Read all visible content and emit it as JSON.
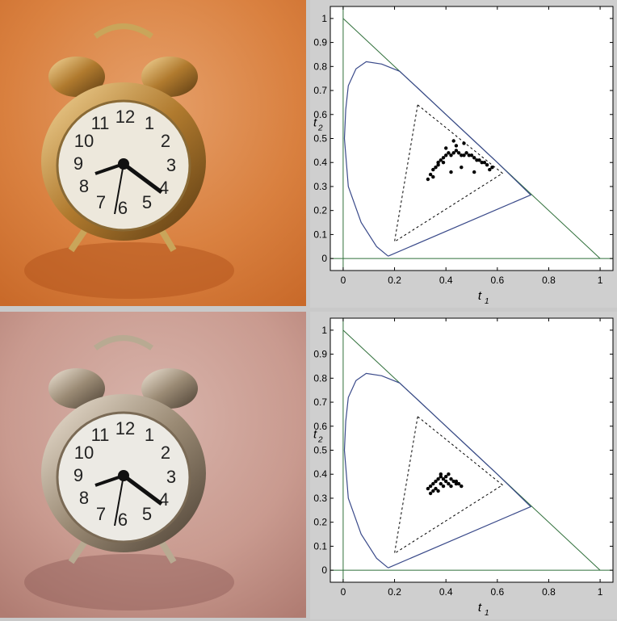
{
  "colors": {
    "figure_bg": "#cfcfcf",
    "axes_bg": "#ffffff",
    "locus": "#3a4a8a",
    "lines": "#2f6f3a",
    "points": "#000000",
    "top_photo_bg": "#d98545",
    "bottom_photo_bg": "#c99a8f"
  },
  "images": [
    {
      "name": "alarm-clock-original",
      "tint": "orange"
    },
    {
      "name": "alarm-clock-corrected",
      "tint": "pink"
    }
  ],
  "clock_numerals": [
    "12",
    "1",
    "2",
    "3",
    "4",
    "5",
    "6",
    "7",
    "8",
    "9",
    "10",
    "11"
  ],
  "chart_data": [
    {
      "type": "scatter",
      "xlabel": "t",
      "xlabel_sub": "1",
      "ylabel": "t",
      "ylabel_sub": "2",
      "xlim": [
        -0.05,
        1.05
      ],
      "ylim": [
        -0.05,
        1.05
      ],
      "xticks": [
        "0",
        "0.2",
        "0.4",
        "0.6",
        "0.8",
        "1"
      ],
      "yticks": [
        "0",
        "0.1",
        "0.2",
        "0.3",
        "0.4",
        "0.5",
        "0.6",
        "0.7",
        "0.8",
        "0.9",
        "1"
      ],
      "grid": false,
      "locus": [
        [
          0.175,
          0.01
        ],
        [
          0.13,
          0.05
        ],
        [
          0.07,
          0.15
        ],
        [
          0.02,
          0.3
        ],
        [
          0.005,
          0.5
        ],
        [
          0.01,
          0.62
        ],
        [
          0.02,
          0.72
        ],
        [
          0.05,
          0.79
        ],
        [
          0.09,
          0.82
        ],
        [
          0.15,
          0.81
        ],
        [
          0.22,
          0.78
        ],
        [
          0.3,
          0.7
        ],
        [
          0.4,
          0.6
        ],
        [
          0.5,
          0.5
        ],
        [
          0.6,
          0.4
        ],
        [
          0.73,
          0.265
        ],
        [
          0.175,
          0.01
        ]
      ],
      "triangle": [
        [
          0.29,
          0.64
        ],
        [
          0.2,
          0.07
        ],
        [
          0.62,
          0.355
        ],
        [
          0.29,
          0.64
        ]
      ],
      "points": [
        [
          0.33,
          0.33
        ],
        [
          0.34,
          0.35
        ],
        [
          0.35,
          0.37
        ],
        [
          0.36,
          0.38
        ],
        [
          0.37,
          0.4
        ],
        [
          0.38,
          0.41
        ],
        [
          0.39,
          0.42
        ],
        [
          0.4,
          0.43
        ],
        [
          0.41,
          0.44
        ],
        [
          0.42,
          0.43
        ],
        [
          0.43,
          0.44
        ],
        [
          0.44,
          0.45
        ],
        [
          0.45,
          0.44
        ],
        [
          0.46,
          0.43
        ],
        [
          0.47,
          0.43
        ],
        [
          0.48,
          0.44
        ],
        [
          0.49,
          0.43
        ],
        [
          0.5,
          0.43
        ],
        [
          0.51,
          0.42
        ],
        [
          0.52,
          0.41
        ],
        [
          0.53,
          0.41
        ],
        [
          0.54,
          0.4
        ],
        [
          0.55,
          0.4
        ],
        [
          0.56,
          0.39
        ],
        [
          0.57,
          0.37
        ],
        [
          0.58,
          0.38
        ],
        [
          0.43,
          0.49
        ],
        [
          0.44,
          0.47
        ],
        [
          0.4,
          0.46
        ],
        [
          0.39,
          0.4
        ],
        [
          0.42,
          0.36
        ],
        [
          0.51,
          0.36
        ],
        [
          0.46,
          0.38
        ],
        [
          0.37,
          0.39
        ],
        [
          0.35,
          0.34
        ],
        [
          0.47,
          0.48
        ]
      ]
    },
    {
      "type": "scatter",
      "xlabel": "t",
      "xlabel_sub": "1",
      "ylabel": "t",
      "ylabel_sub": "2",
      "xlim": [
        -0.05,
        1.05
      ],
      "ylim": [
        -0.05,
        1.05
      ],
      "xticks": [
        "0",
        "0.2",
        "0.4",
        "0.6",
        "0.8",
        "1"
      ],
      "yticks": [
        "0",
        "0.1",
        "0.2",
        "0.3",
        "0.4",
        "0.5",
        "0.6",
        "0.7",
        "0.8",
        "0.9",
        "1"
      ],
      "grid": false,
      "locus": [
        [
          0.175,
          0.01
        ],
        [
          0.13,
          0.05
        ],
        [
          0.07,
          0.15
        ],
        [
          0.02,
          0.3
        ],
        [
          0.005,
          0.5
        ],
        [
          0.01,
          0.62
        ],
        [
          0.02,
          0.72
        ],
        [
          0.05,
          0.79
        ],
        [
          0.09,
          0.82
        ],
        [
          0.15,
          0.81
        ],
        [
          0.22,
          0.78
        ],
        [
          0.3,
          0.7
        ],
        [
          0.4,
          0.6
        ],
        [
          0.5,
          0.5
        ],
        [
          0.6,
          0.4
        ],
        [
          0.73,
          0.265
        ],
        [
          0.175,
          0.01
        ]
      ],
      "triangle": [
        [
          0.29,
          0.64
        ],
        [
          0.2,
          0.07
        ],
        [
          0.62,
          0.355
        ],
        [
          0.29,
          0.64
        ]
      ],
      "points": [
        [
          0.33,
          0.34
        ],
        [
          0.34,
          0.35
        ],
        [
          0.35,
          0.36
        ],
        [
          0.36,
          0.37
        ],
        [
          0.37,
          0.38
        ],
        [
          0.38,
          0.39
        ],
        [
          0.39,
          0.38
        ],
        [
          0.4,
          0.39
        ],
        [
          0.41,
          0.4
        ],
        [
          0.4,
          0.37
        ],
        [
          0.42,
          0.38
        ],
        [
          0.43,
          0.37
        ],
        [
          0.44,
          0.37
        ],
        [
          0.45,
          0.36
        ],
        [
          0.46,
          0.35
        ],
        [
          0.34,
          0.32
        ],
        [
          0.36,
          0.34
        ],
        [
          0.38,
          0.36
        ],
        [
          0.39,
          0.35
        ],
        [
          0.41,
          0.36
        ],
        [
          0.37,
          0.33
        ],
        [
          0.35,
          0.33
        ],
        [
          0.42,
          0.35
        ],
        [
          0.44,
          0.36
        ],
        [
          0.38,
          0.4
        ]
      ]
    }
  ]
}
